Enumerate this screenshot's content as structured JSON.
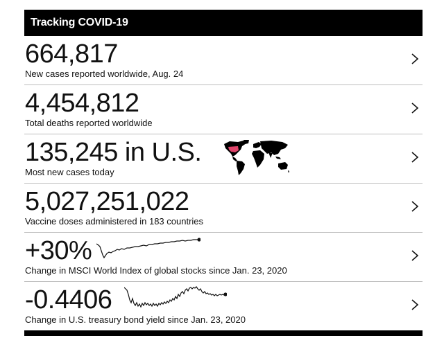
{
  "header": {
    "title": "Tracking COVID-19"
  },
  "rows": [
    {
      "value": "664,817",
      "caption": "New cases reported worldwide, Aug. 24"
    },
    {
      "value": "4,454,812",
      "caption": "Total deaths reported worldwide"
    },
    {
      "value": "135,245 in U.S.",
      "caption": "Most new cases today"
    },
    {
      "value": "5,027,251,022",
      "caption": "Vaccine doses administered in 183 countries"
    },
    {
      "value": "+30%",
      "caption": "Change in MSCI World Index of global stocks since Jan. 23, 2020"
    },
    {
      "value": "-0.4406",
      "caption": "Change in U.S. treasury bond yield since Jan. 23, 2020"
    }
  ],
  "icons": {
    "chevron": "chevron-right-icon",
    "map": "world-map-icon",
    "sparkline": "sparkline"
  },
  "colors": {
    "header_bg": "#000000",
    "header_text": "#ffffff",
    "divider": "#bdbdbd",
    "map_fill": "#000000",
    "us_highlight": "#e0446a"
  }
}
